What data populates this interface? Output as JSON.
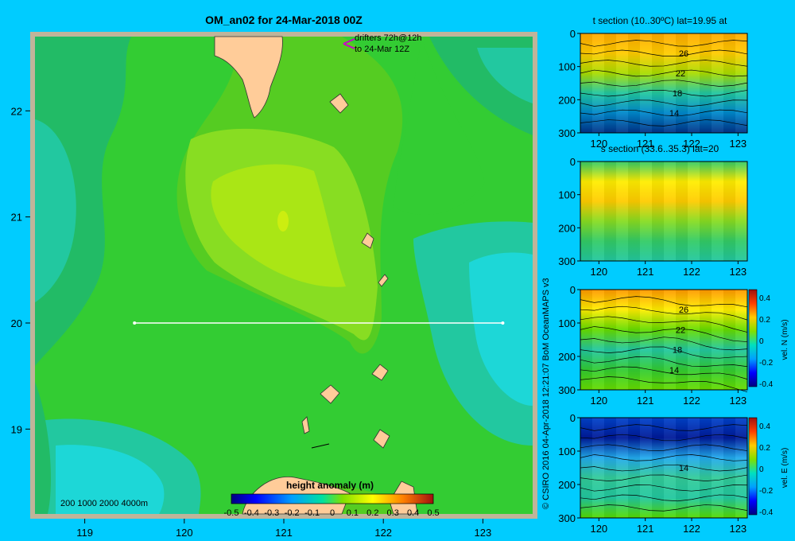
{
  "map": {
    "title": "OM_an02 for 24-Mar-2018 00Z",
    "drifters_line1": "drifters 72h@12h",
    "drifters_line2": "to 24-Mar 12Z",
    "depth_legend": "200  1000  2000  4000m",
    "lon_ticks": [
      "119",
      "120",
      "121",
      "122",
      "123"
    ],
    "lat_ticks": [
      "22",
      "21",
      "20",
      "19"
    ],
    "colorbar_title": "height anomaly  (m)",
    "colorbar_ticks": [
      "-0.5",
      "-0.4",
      "-0.3",
      "-0.2",
      "-0.1",
      "0",
      "0.1",
      "0.2",
      "0.3",
      "0.4",
      "0.5"
    ],
    "section_line": {
      "lat": 20.0,
      "lon_start": 119.5,
      "lon_end": 123.2
    }
  },
  "credit": "© CSIRO 2016   04-Apr-2018 12:21:07 BoM OceanMAPS v3",
  "panels": [
    {
      "title": "t section (10..30ºC) lat=19.95 at",
      "contour_labels": [
        "26",
        "22",
        "18",
        "14"
      ],
      "colorbar": false,
      "colorbar_label": "",
      "colorbar_ticks": []
    },
    {
      "title": "s section (33.6..35.3) lat=20",
      "contour_labels": [],
      "colorbar": false,
      "colorbar_label": "",
      "colorbar_ticks": []
    },
    {
      "title": "",
      "contour_labels": [
        "26",
        "22",
        "18",
        "14"
      ],
      "colorbar": true,
      "colorbar_label": "vel. N  (m/s)",
      "colorbar_ticks": [
        "0.4",
        "0.2",
        "0",
        "-0.2",
        "-0.4"
      ]
    },
    {
      "title": "",
      "contour_labels": [
        "14"
      ],
      "colorbar": true,
      "colorbar_label": "vel. E  (m/s)",
      "colorbar_ticks": [
        "0.4",
        "0.2",
        "0",
        "-0.2",
        "-0.4"
      ]
    }
  ],
  "panel_axes": {
    "x_ticks": [
      "120",
      "121",
      "122",
      "123"
    ],
    "y_ticks": [
      "0",
      "100",
      "200",
      "300"
    ]
  },
  "chart_data": [
    {
      "type": "heatmap",
      "title": "OM_an02 for 24-Mar-2018 00Z",
      "colorbar_label": "height anomaly  (m)",
      "value_range": [
        -0.5,
        0.5
      ],
      "xlim": [
        118.5,
        123.5
      ],
      "ylim": [
        18.2,
        22.7
      ],
      "x_ticks": [
        119,
        120,
        121,
        122,
        123
      ],
      "y_ticks": [
        19,
        20,
        21,
        22
      ],
      "section_line": {
        "lat": 20.0,
        "lon": [
          119.5,
          123.2
        ]
      }
    },
    {
      "type": "heatmap",
      "title": "t section (10..30ºC) lat=19.95 at",
      "value_range": [
        10,
        30
      ],
      "xlim": [
        119.6,
        123.2
      ],
      "ylim": [
        300,
        0
      ],
      "contour_labels": [
        26,
        22,
        18,
        14
      ]
    },
    {
      "type": "heatmap",
      "title": "s section (33.6..35.3) lat=20",
      "value_range": [
        33.6,
        35.3
      ],
      "xlim": [
        119.6,
        123.2
      ],
      "ylim": [
        300,
        0
      ]
    },
    {
      "type": "heatmap",
      "colorbar_label": "vel. N  (m/s)",
      "value_range": [
        -0.4,
        0.4
      ],
      "xlim": [
        119.6,
        123.2
      ],
      "ylim": [
        300,
        0
      ],
      "contour_labels": [
        26,
        22,
        18,
        14
      ]
    },
    {
      "type": "heatmap",
      "colorbar_label": "vel. E  (m/s)",
      "value_range": [
        -0.4,
        0.4
      ],
      "xlim": [
        119.6,
        123.2
      ],
      "ylim": [
        300,
        0
      ],
      "contour_labels": [
        14
      ]
    }
  ]
}
